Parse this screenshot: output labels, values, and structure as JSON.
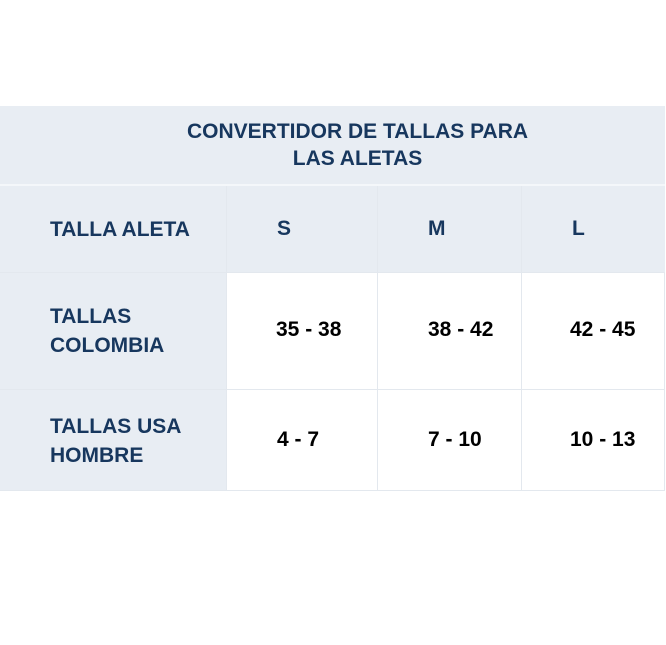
{
  "title": {
    "line1": "CONVERTIDOR DE TALLAS PARA",
    "line2": "LAS ALETAS"
  },
  "header": {
    "label": "TALLA ALETA",
    "sizes": [
      "S",
      "M",
      "L"
    ]
  },
  "rows": [
    {
      "label_line1": "TALLAS",
      "label_line2": "COLOMBIA",
      "values": [
        "35 - 38",
        "38 - 42",
        "42 - 45"
      ]
    },
    {
      "label_line1": "TALLAS USA",
      "label_line2": "HOMBRE",
      "values": [
        "4 - 7",
        "7 - 10",
        "10 - 13"
      ]
    }
  ],
  "colors": {
    "header_bg": "#e8edf3",
    "header_text": "#17375e",
    "cell_bg": "#ffffff",
    "cell_text": "#000000"
  }
}
